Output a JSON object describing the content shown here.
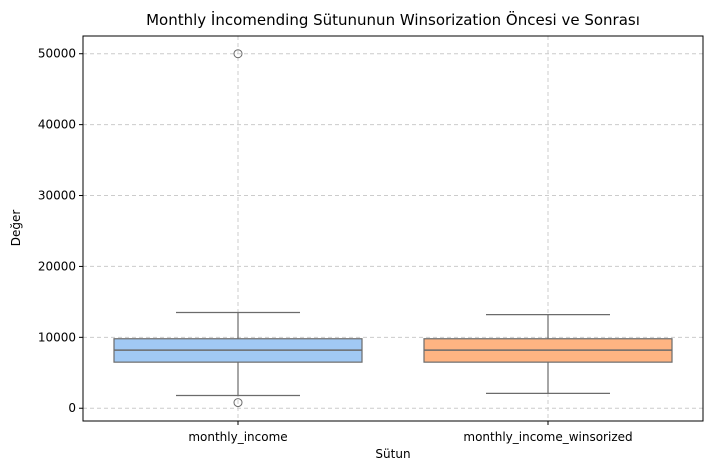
{
  "chart_data": {
    "type": "box",
    "title": "Monthly İncomending Sütununun Winsorization Öncesi ve Sonrası",
    "xlabel": "Sütun",
    "ylabel": "Değer",
    "categories": [
      "monthly_income",
      "monthly_income_winsorized"
    ],
    "ylim": [
      -1800,
      52500
    ],
    "yticks": [
      0,
      10000,
      20000,
      30000,
      40000,
      50000
    ],
    "grid": true,
    "boxes": [
      {
        "category": "monthly_income",
        "whisker_low": 1800,
        "q1": 6500,
        "median": 8200,
        "q3": 9800,
        "whisker_high": 13500,
        "outliers": [
          800,
          50000
        ],
        "color": "#a1c9f4"
      },
      {
        "category": "monthly_income_winsorized",
        "whisker_low": 2100,
        "q1": 6500,
        "median": 8200,
        "q3": 9800,
        "whisker_high": 13200,
        "outliers": [],
        "color": "#ffb482"
      }
    ],
    "colors": {
      "line": "#6b6b6b",
      "grid": "#cccccc"
    }
  }
}
